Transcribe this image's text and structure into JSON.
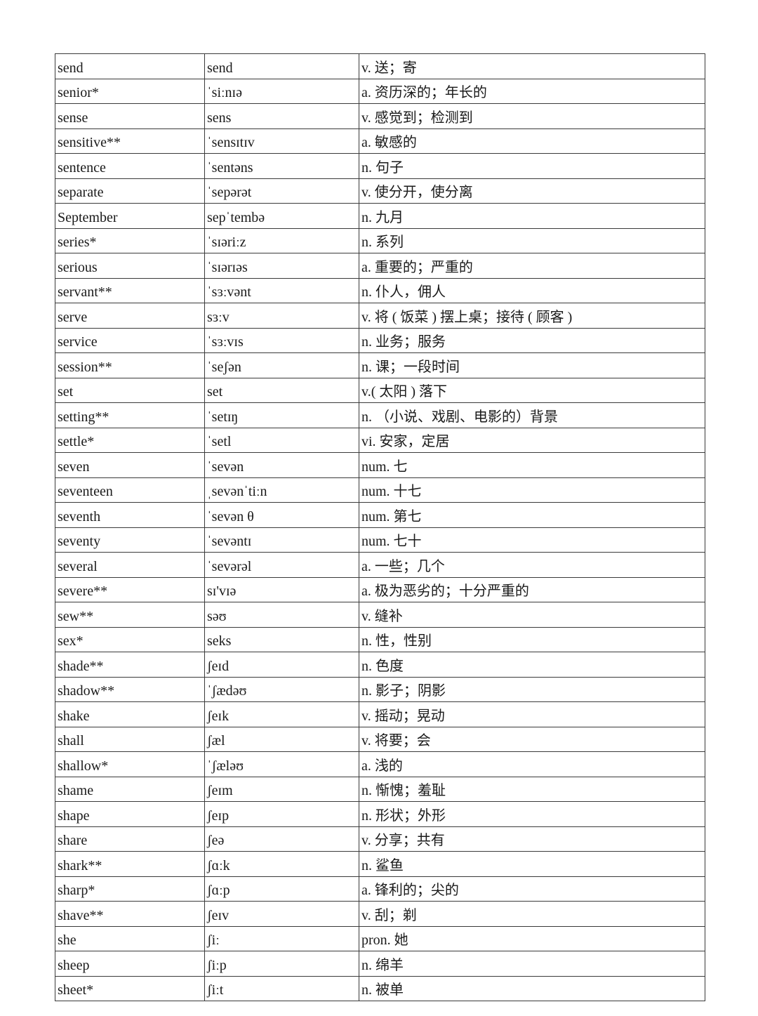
{
  "rows": [
    {
      "word": "send",
      "phonetic": "send",
      "meaning": "v. 送；寄"
    },
    {
      "word": "senior*",
      "phonetic": "ˈsiːnɪə",
      "meaning": "a. 资历深的；年长的"
    },
    {
      "word": "sense",
      "phonetic": "sens",
      "meaning": "v. 感觉到；检测到"
    },
    {
      "word": "sensitive**",
      "phonetic": "ˈsensɪtɪv",
      "meaning": "a. 敏感的"
    },
    {
      "word": "sentence",
      "phonetic": "ˈsentəns",
      "meaning": "n. 句子"
    },
    {
      "word": "separate",
      "phonetic": "ˈsepərət",
      "meaning": "v. 使分开，使分离"
    },
    {
      "word": "September",
      "phonetic": "sepˈtembə",
      "meaning": "n. 九月"
    },
    {
      "word": "series*",
      "phonetic": "ˈsɪəriːz",
      "meaning": "n. 系列"
    },
    {
      "word": "serious",
      "phonetic": "ˈsɪərɪəs",
      "meaning": "a. 重要的；严重的"
    },
    {
      "word": "servant**",
      "phonetic": "ˈsɜːvənt",
      "meaning": "n. 仆人，佣人"
    },
    {
      "word": "serve",
      "phonetic": "sɜːv",
      "meaning": "v. 将 ( 饭菜 ) 摆上桌；接待 ( 顾客 )"
    },
    {
      "word": "service",
      "phonetic": "ˈsɜːvɪs",
      "meaning": "n. 业务；服务"
    },
    {
      "word": "session**",
      "phonetic": "ˈseʃən",
      "meaning": "n. 课；一段时间"
    },
    {
      "word": "set",
      "phonetic": "set",
      "meaning": "v.( 太阳 ) 落下"
    },
    {
      "word": "setting**",
      "phonetic": "ˈsetɪŋ",
      "meaning": "n. （小说、戏剧、电影的）背景"
    },
    {
      "word": "settle*",
      "phonetic": "ˈsetl",
      "meaning": "vi. 安家，定居"
    },
    {
      "word": "seven",
      "phonetic": "ˈsevən",
      "meaning": "num. 七"
    },
    {
      "word": "seventeen",
      "phonetic": "ˌsevənˈtiːn",
      "meaning": "num. 十七"
    },
    {
      "word": "seventh",
      "phonetic": "ˈsevən θ",
      "meaning": "num. 第七"
    },
    {
      "word": "seventy",
      "phonetic": "ˈsevəntɪ",
      "meaning": "num. 七十"
    },
    {
      "word": "several",
      "phonetic": "ˈsevərəl",
      "meaning": "a. 一些；几个"
    },
    {
      "word": "severe**",
      "phonetic": "sɪ'vɪə",
      "meaning": "a. 极为恶劣的；十分严重的"
    },
    {
      "word": "sew**",
      "phonetic": "səʊ",
      "meaning": "v. 缝补"
    },
    {
      "word": "sex*",
      "phonetic": "seks",
      "meaning": "n. 性，性别"
    },
    {
      "word": "shade**",
      "phonetic": "ʃeɪd",
      "meaning": "n. 色度"
    },
    {
      "word": "shadow**",
      "phonetic": "ˈʃædəʊ",
      "meaning": "n. 影子；阴影"
    },
    {
      "word": "shake",
      "phonetic": "ʃeɪk",
      "meaning": "v. 摇动；晃动"
    },
    {
      "word": "shall",
      "phonetic": "ʃæl",
      "meaning": "v. 将要；会"
    },
    {
      "word": "shallow*",
      "phonetic": "ˈʃæləʊ",
      "meaning": "a. 浅的"
    },
    {
      "word": "shame",
      "phonetic": "ʃeɪm",
      "meaning": "n. 惭愧；羞耻"
    },
    {
      "word": "shape",
      "phonetic": "ʃeɪp",
      "meaning": "n. 形状；外形"
    },
    {
      "word": "share",
      "phonetic": "ʃeə",
      "meaning": "v. 分享；共有"
    },
    {
      "word": "shark**",
      "phonetic": "ʃɑːk",
      "meaning": "n. 鲨鱼"
    },
    {
      "word": "sharp*",
      "phonetic": "ʃɑːp",
      "meaning": "a. 锋利的；尖的"
    },
    {
      "word": "shave**",
      "phonetic": "ʃeɪv",
      "meaning": "v. 刮；剃"
    },
    {
      "word": "she",
      "phonetic": "ʃiː",
      "meaning": "pron. 她"
    },
    {
      "word": "sheep",
      "phonetic": "ʃiːp",
      "meaning": "n. 绵羊"
    },
    {
      "word": "sheet*",
      "phonetic": "ʃiːt",
      "meaning": "n. 被单"
    }
  ]
}
